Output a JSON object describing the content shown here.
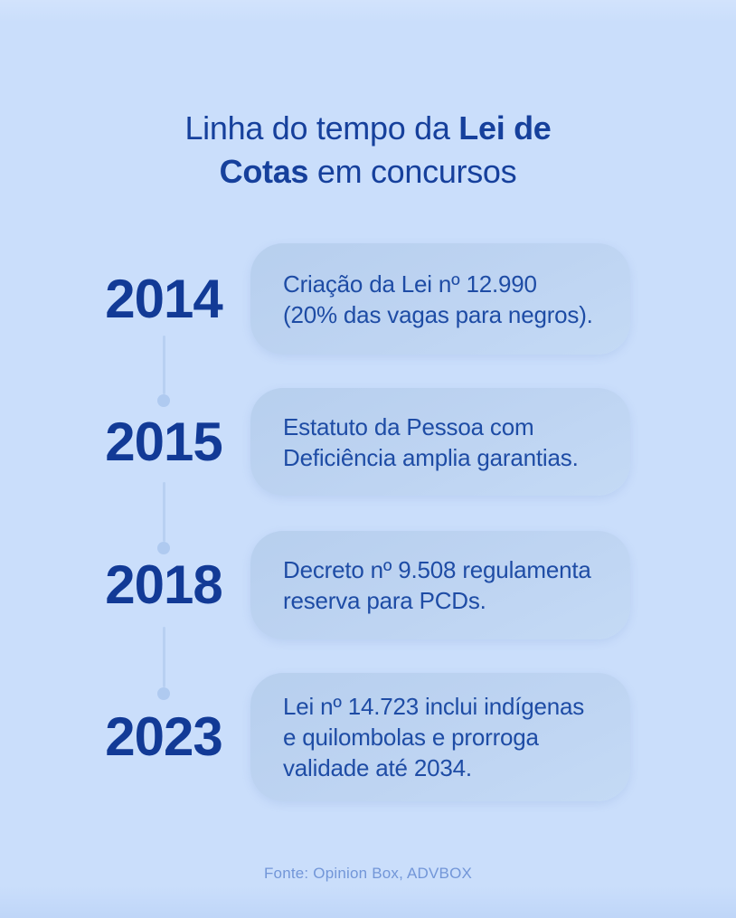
{
  "title": {
    "part1": "Linha do tempo da ",
    "part2_bold": "Lei de\nCotas",
    "part3": " em concursos"
  },
  "timeline": {
    "events": [
      {
        "year": "2014",
        "text": "Criação da Lei nº 12.990\n(20% das vagas para negros)."
      },
      {
        "year": "2015",
        "text": "Estatuto da Pessoa com\nDeficiência amplia garantias."
      },
      {
        "year": "2018",
        "text": "Decreto nº 9.508 regulamenta\nreserva para PCDs."
      },
      {
        "year": "2023",
        "text": "Lei nº 14.723 inclui indígenas\ne quilombolas e prorroga\nvalidade até 2034."
      }
    ]
  },
  "footer": {
    "source": "Fonte: Opinion Box, ADVBOX"
  },
  "colors": {
    "background": "#cadefb",
    "card_background": "#bcd3f1",
    "title_text": "#16409c",
    "year_text": "#123a96",
    "card_text": "#1e4ca5",
    "connector": "#b8d0f2",
    "connector_dot": "#afcaf0",
    "source_text": "#7296d8"
  }
}
